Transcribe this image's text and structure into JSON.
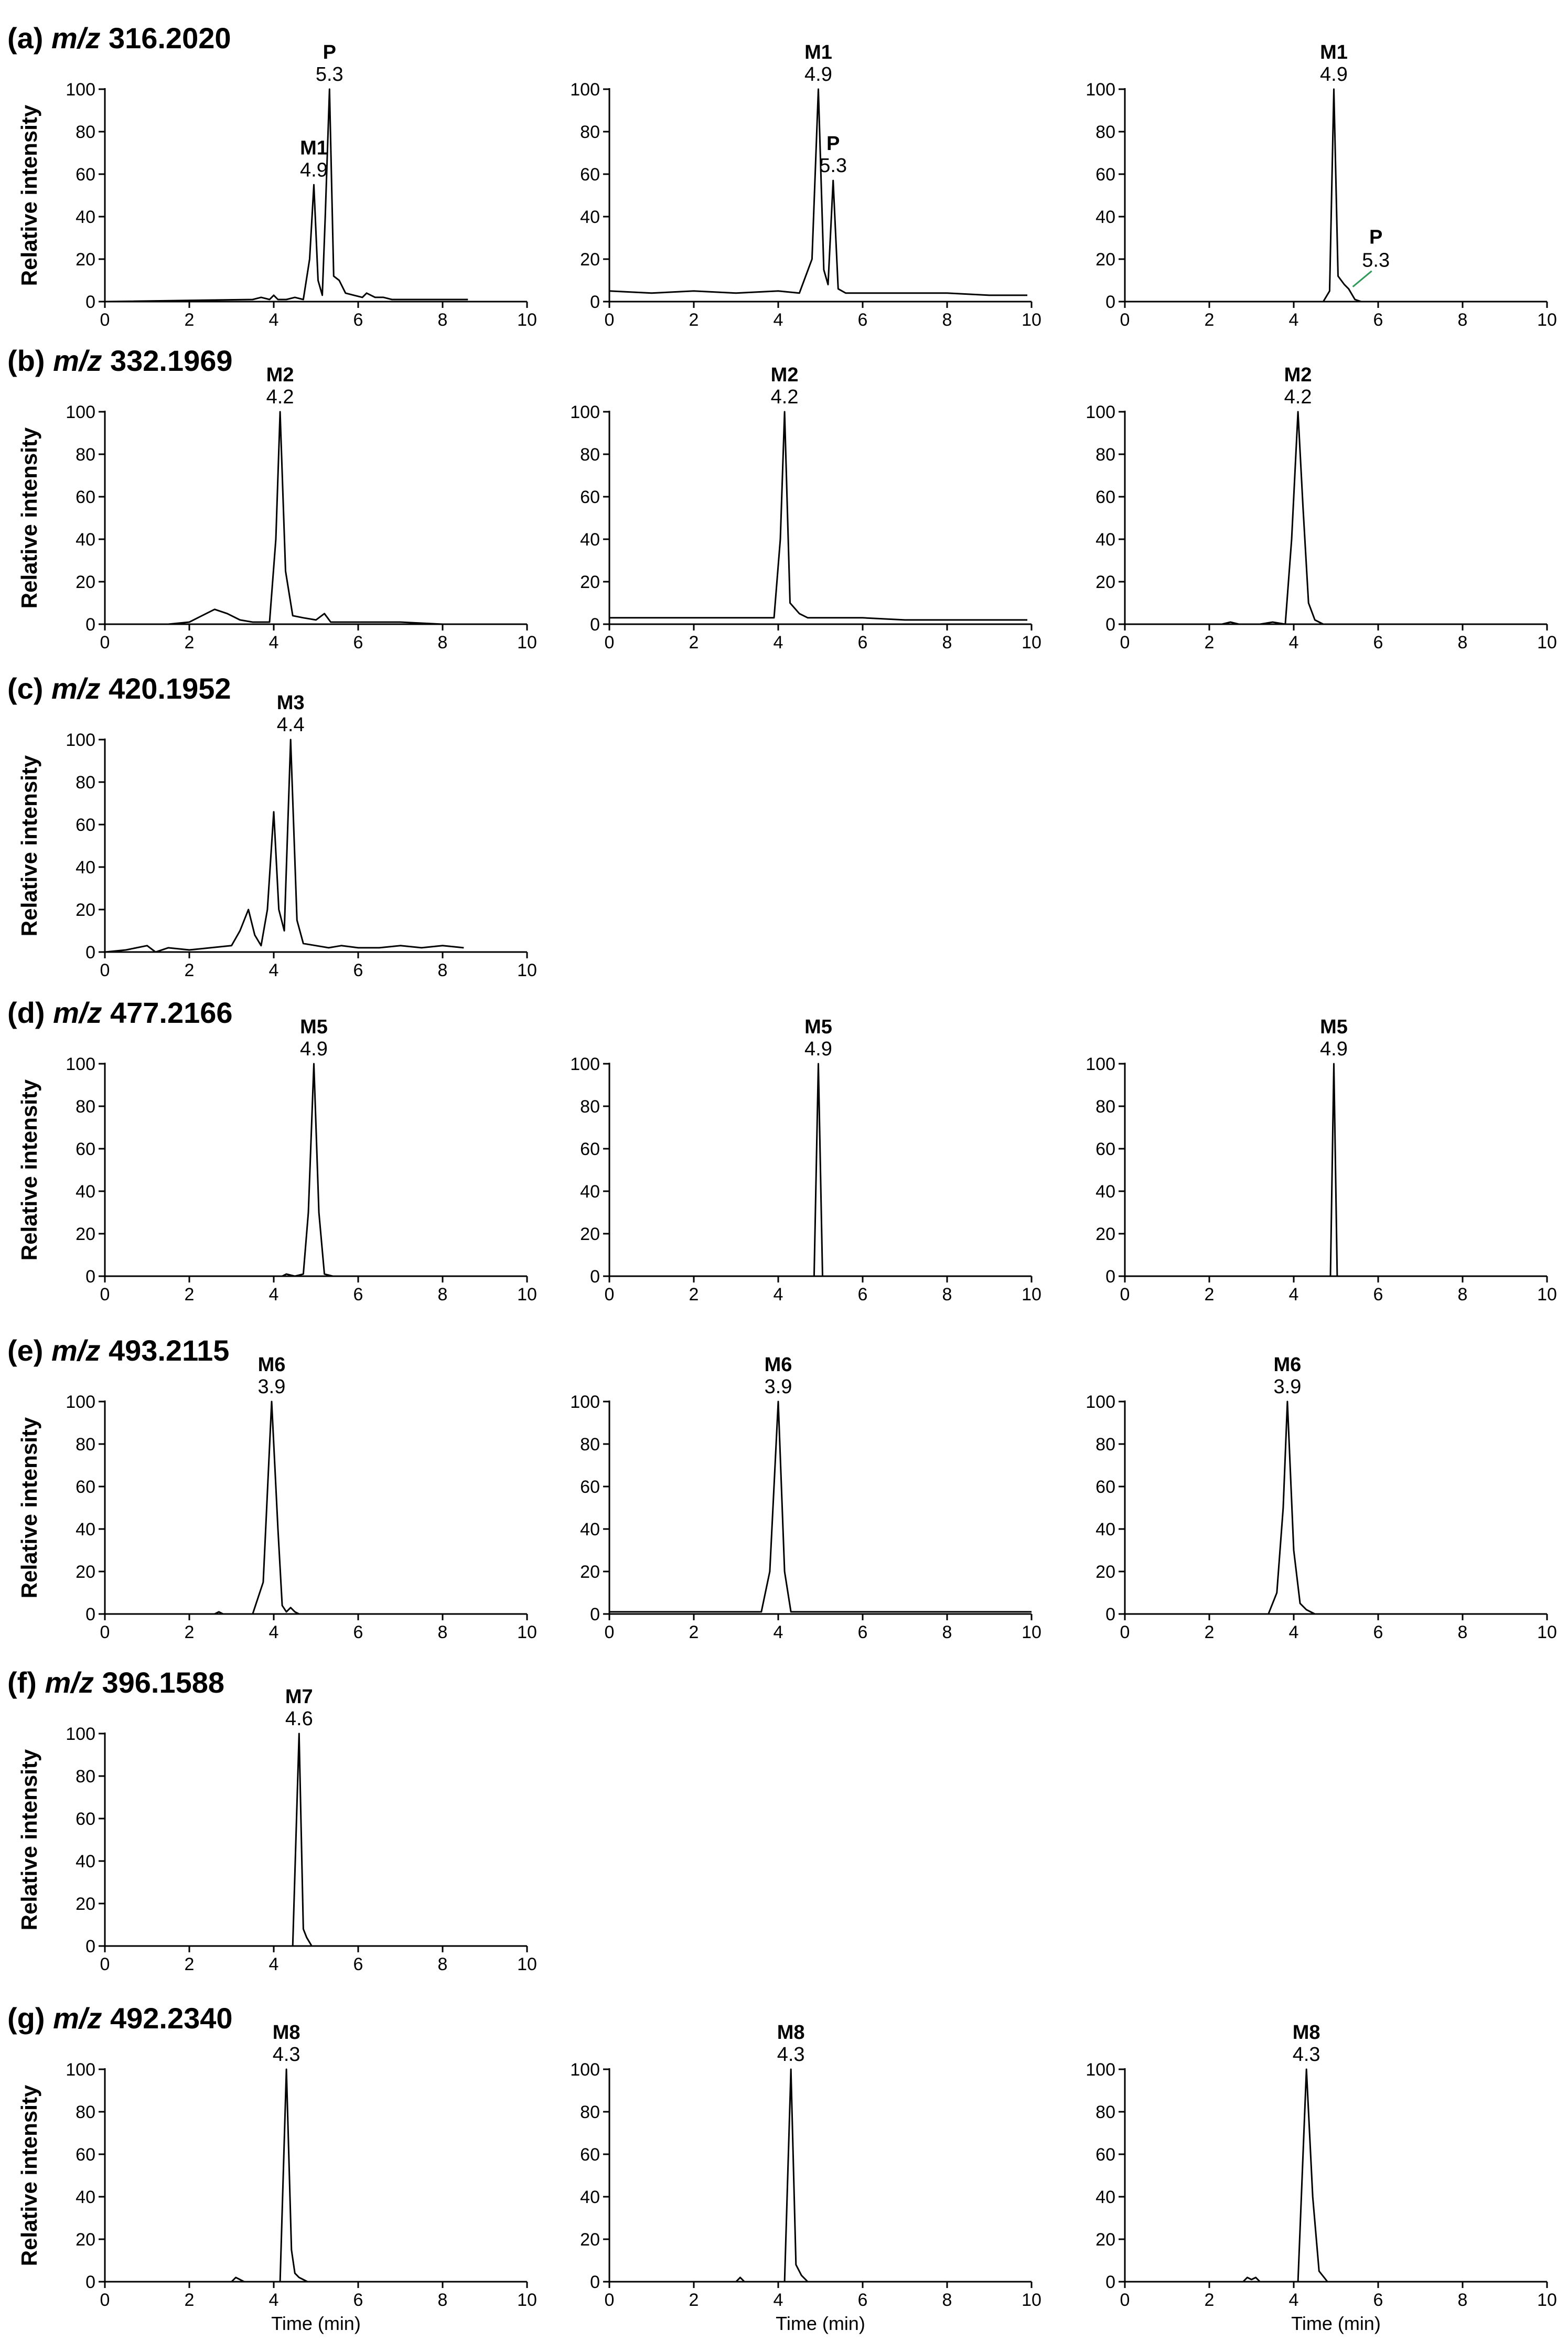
{
  "chart_data": [
    {
      "type": "line",
      "row": 0,
      "col": 0,
      "panel_letter": "(a)",
      "mz_prefix": "m/z",
      "mz_value": "316.2020",
      "ylabel": "Relative intensity",
      "xlabel": "",
      "xlim": [
        0,
        10
      ],
      "ylim": [
        0,
        100
      ],
      "x_ticks": [
        0,
        2,
        4,
        6,
        8,
        10
      ],
      "y_ticks": [
        0,
        20,
        40,
        60,
        80,
        100
      ],
      "peaks": [
        {
          "name": "M1",
          "rt": "4.9",
          "x": 4.95,
          "y": 55
        },
        {
          "name": "P",
          "rt": "5.3",
          "x": 5.32,
          "y": 100
        }
      ],
      "series": [
        {
          "x": [
            0,
            3.5,
            3.7,
            3.9,
            4.0,
            4.1,
            4.3,
            4.5,
            4.7,
            4.85,
            4.95,
            5.05,
            5.15,
            5.22,
            5.32,
            5.42,
            5.55,
            5.7,
            5.9,
            6.1,
            6.2,
            6.4,
            6.6,
            6.8,
            7.0,
            8.0,
            8.6
          ],
          "y": [
            0,
            1,
            2,
            1,
            3,
            1,
            1,
            2,
            1,
            20,
            55,
            10,
            3,
            40,
            100,
            12,
            10,
            4,
            3,
            2,
            4,
            2,
            2,
            1,
            1,
            1,
            1
          ]
        }
      ]
    },
    {
      "type": "line",
      "row": 0,
      "col": 1,
      "panel_letter": "",
      "mz_prefix": "",
      "mz_value": "",
      "ylabel": "",
      "xlabel": "",
      "xlim": [
        0,
        10
      ],
      "ylim": [
        0,
        100
      ],
      "x_ticks": [
        0,
        2,
        4,
        6,
        8,
        10
      ],
      "y_ticks": [
        0,
        20,
        40,
        60,
        80,
        100
      ],
      "peaks": [
        {
          "name": "M1",
          "rt": "4.9",
          "x": 4.95,
          "y": 100
        },
        {
          "name": "P",
          "rt": "5.3",
          "x": 5.3,
          "y": 57
        }
      ],
      "series": [
        {
          "x": [
            0,
            1,
            2,
            3,
            4,
            4.5,
            4.8,
            4.95,
            5.08,
            5.18,
            5.3,
            5.42,
            5.6,
            6,
            7,
            8,
            9,
            9.9
          ],
          "y": [
            5,
            4,
            5,
            4,
            5,
            4,
            20,
            100,
            15,
            8,
            57,
            6,
            4,
            4,
            4,
            4,
            3,
            3
          ]
        }
      ]
    },
    {
      "type": "line",
      "row": 0,
      "col": 2,
      "panel_letter": "",
      "mz_prefix": "",
      "mz_value": "",
      "ylabel": "",
      "xlabel": "",
      "xlim": [
        0,
        10
      ],
      "ylim": [
        0,
        100
      ],
      "x_ticks": [
        0,
        2,
        4,
        6,
        8,
        10
      ],
      "y_ticks": [
        0,
        20,
        40,
        60,
        80,
        100
      ],
      "peaks": [
        {
          "name": "M1",
          "rt": "4.9",
          "x": 4.95,
          "y": 100
        },
        {
          "name": "P",
          "rt": "5.3",
          "x": 5.35,
          "y": 6,
          "leader": true
        }
      ],
      "series": [
        {
          "x": [
            0,
            4.7,
            4.85,
            4.95,
            5.05,
            5.2,
            5.3,
            5.45,
            5.6,
            6,
            6.1
          ],
          "y": [
            0,
            0,
            5,
            100,
            12,
            8,
            6,
            1,
            0,
            0,
            0
          ]
        }
      ]
    },
    {
      "type": "line",
      "row": 1,
      "col": 0,
      "panel_letter": "(b)",
      "mz_prefix": "m/z",
      "mz_value": "332.1969",
      "ylabel": "Relative intensity",
      "xlabel": "",
      "xlim": [
        0,
        10
      ],
      "ylim": [
        0,
        100
      ],
      "x_ticks": [
        0,
        2,
        4,
        6,
        8,
        10
      ],
      "y_ticks": [
        0,
        20,
        40,
        60,
        80,
        100
      ],
      "peaks": [
        {
          "name": "M2",
          "rt": "4.2",
          "x": 4.15,
          "y": 100
        }
      ],
      "series": [
        {
          "x": [
            0,
            1.5,
            2,
            2.3,
            2.6,
            2.9,
            3.2,
            3.5,
            3.9,
            4.05,
            4.15,
            4.28,
            4.45,
            4.7,
            5.0,
            5.2,
            5.35,
            5.5,
            6,
            7,
            8,
            8.6
          ],
          "y": [
            0,
            0,
            1,
            4,
            7,
            5,
            2,
            1,
            1,
            40,
            100,
            25,
            4,
            3,
            2,
            5,
            1,
            1,
            1,
            1,
            0,
            0
          ]
        }
      ]
    },
    {
      "type": "line",
      "row": 1,
      "col": 1,
      "panel_letter": "",
      "mz_prefix": "",
      "mz_value": "",
      "ylabel": "",
      "xlabel": "",
      "xlim": [
        0,
        10
      ],
      "ylim": [
        0,
        100
      ],
      "x_ticks": [
        0,
        2,
        4,
        6,
        8,
        10
      ],
      "y_ticks": [
        0,
        20,
        40,
        60,
        80,
        100
      ],
      "peaks": [
        {
          "name": "M2",
          "rt": "4.2",
          "x": 4.15,
          "y": 100
        }
      ],
      "series": [
        {
          "x": [
            0,
            1,
            2,
            3,
            3.9,
            4.05,
            4.15,
            4.28,
            4.5,
            4.7,
            5,
            6,
            7,
            8,
            9,
            9.9
          ],
          "y": [
            3,
            3,
            3,
            3,
            3,
            40,
            100,
            10,
            5,
            3,
            3,
            3,
            2,
            2,
            2,
            2
          ]
        }
      ]
    },
    {
      "type": "line",
      "row": 1,
      "col": 2,
      "panel_letter": "",
      "mz_prefix": "",
      "mz_value": "",
      "ylabel": "",
      "xlabel": "",
      "xlim": [
        0,
        10
      ],
      "ylim": [
        0,
        100
      ],
      "x_ticks": [
        0,
        2,
        4,
        6,
        8,
        10
      ],
      "y_ticks": [
        0,
        20,
        40,
        60,
        80,
        100
      ],
      "peaks": [
        {
          "name": "M2",
          "rt": "4.2",
          "x": 4.1,
          "y": 100
        }
      ],
      "series": [
        {
          "x": [
            0,
            2.3,
            2.5,
            2.7,
            3.2,
            3.5,
            3.8,
            3.95,
            4.1,
            4.22,
            4.35,
            4.5,
            4.7,
            5,
            6
          ],
          "y": [
            0,
            0,
            1,
            0,
            0,
            1,
            0,
            40,
            100,
            55,
            10,
            2,
            0,
            0,
            0
          ]
        }
      ]
    },
    {
      "type": "line",
      "row": 2,
      "col": 0,
      "panel_letter": "(c)",
      "mz_prefix": "m/z",
      "mz_value": "420.1952",
      "ylabel": "Relative intensity",
      "xlabel": "",
      "xlim": [
        0,
        10
      ],
      "ylim": [
        0,
        100
      ],
      "x_ticks": [
        0,
        2,
        4,
        6,
        8,
        10
      ],
      "y_ticks": [
        0,
        20,
        40,
        60,
        80,
        100
      ],
      "peaks": [
        {
          "name": "M3",
          "rt": "4.4",
          "x": 4.4,
          "y": 100
        }
      ],
      "series": [
        {
          "x": [
            0,
            0.5,
            1,
            1.2,
            1.5,
            2,
            2.5,
            3,
            3.2,
            3.4,
            3.55,
            3.7,
            3.85,
            4.0,
            4.12,
            4.25,
            4.4,
            4.55,
            4.7,
            5,
            5.3,
            5.6,
            6,
            6.5,
            7,
            7.5,
            8,
            8.5
          ],
          "y": [
            0,
            1,
            3,
            0,
            2,
            1,
            2,
            3,
            10,
            20,
            8,
            3,
            20,
            66,
            20,
            10,
            100,
            15,
            4,
            3,
            2,
            3,
            2,
            2,
            3,
            2,
            3,
            2
          ]
        }
      ]
    },
    {
      "type": "line",
      "row": 3,
      "col": 0,
      "panel_letter": "(d)",
      "mz_prefix": "m/z",
      "mz_value": "477.2166",
      "ylabel": "Relative intensity",
      "xlabel": "",
      "xlim": [
        0,
        10
      ],
      "ylim": [
        0,
        100
      ],
      "x_ticks": [
        0,
        2,
        4,
        6,
        8,
        10
      ],
      "y_ticks": [
        0,
        20,
        40,
        60,
        80,
        100
      ],
      "peaks": [
        {
          "name": "M5",
          "rt": "4.9",
          "x": 4.95,
          "y": 100
        }
      ],
      "series": [
        {
          "x": [
            0,
            4.2,
            4.3,
            4.5,
            4.7,
            4.82,
            4.95,
            5.07,
            5.2,
            5.4,
            10
          ],
          "y": [
            0,
            0,
            1,
            0,
            1,
            30,
            100,
            30,
            1,
            0,
            0
          ]
        }
      ]
    },
    {
      "type": "line",
      "row": 3,
      "col": 1,
      "panel_letter": "",
      "mz_prefix": "",
      "mz_value": "",
      "ylabel": "",
      "xlabel": "",
      "xlim": [
        0,
        10
      ],
      "ylim": [
        0,
        100
      ],
      "x_ticks": [
        0,
        2,
        4,
        6,
        8,
        10
      ],
      "y_ticks": [
        0,
        20,
        40,
        60,
        80,
        100
      ],
      "peaks": [
        {
          "name": "M5",
          "rt": "4.9",
          "x": 4.95,
          "y": 100
        }
      ],
      "series": [
        {
          "x": [
            0,
            4.85,
            4.95,
            5.05,
            10
          ],
          "y": [
            0,
            0,
            100,
            0,
            0
          ]
        }
      ]
    },
    {
      "type": "line",
      "row": 3,
      "col": 2,
      "panel_letter": "",
      "mz_prefix": "",
      "mz_value": "",
      "ylabel": "",
      "xlabel": "",
      "xlim": [
        0,
        10
      ],
      "ylim": [
        0,
        100
      ],
      "x_ticks": [
        0,
        2,
        4,
        6,
        8,
        10
      ],
      "y_ticks": [
        0,
        20,
        40,
        60,
        80,
        100
      ],
      "peaks": [
        {
          "name": "M5",
          "rt": "4.9",
          "x": 4.95,
          "y": 100
        }
      ],
      "series": [
        {
          "x": [
            0,
            4.87,
            4.95,
            5.03,
            10
          ],
          "y": [
            0,
            0,
            100,
            0,
            0
          ]
        }
      ]
    },
    {
      "type": "line",
      "row": 4,
      "col": 0,
      "panel_letter": "(e)",
      "mz_prefix": "m/z",
      "mz_value": "493.2115",
      "ylabel": "Relative intensity",
      "xlabel": "",
      "xlim": [
        0,
        10
      ],
      "ylim": [
        0,
        100
      ],
      "x_ticks": [
        0,
        2,
        4,
        6,
        8,
        10
      ],
      "y_ticks": [
        0,
        20,
        40,
        60,
        80,
        100
      ],
      "peaks": [
        {
          "name": "M6",
          "rt": "3.9",
          "x": 3.95,
          "y": 100
        }
      ],
      "series": [
        {
          "x": [
            0,
            2.6,
            2.7,
            2.8,
            3.5,
            3.75,
            3.95,
            4.1,
            4.2,
            4.3,
            4.4,
            4.5,
            4.6,
            10
          ],
          "y": [
            0,
            0,
            1,
            0,
            0,
            15,
            100,
            40,
            4,
            1,
            3,
            1,
            0,
            0
          ]
        }
      ]
    },
    {
      "type": "line",
      "row": 4,
      "col": 1,
      "panel_letter": "",
      "mz_prefix": "",
      "mz_value": "",
      "ylabel": "",
      "xlabel": "",
      "xlim": [
        0,
        10
      ],
      "ylim": [
        0,
        100
      ],
      "x_ticks": [
        0,
        2,
        4,
        6,
        8,
        10
      ],
      "y_ticks": [
        0,
        20,
        40,
        60,
        80,
        100
      ],
      "peaks": [
        {
          "name": "M6",
          "rt": "3.9",
          "x": 4.0,
          "y": 100
        }
      ],
      "series": [
        {
          "x": [
            0,
            3.6,
            3.8,
            4.0,
            4.15,
            4.3,
            10
          ],
          "y": [
            1,
            1,
            20,
            100,
            20,
            1,
            1
          ]
        }
      ]
    },
    {
      "type": "line",
      "row": 4,
      "col": 2,
      "panel_letter": "",
      "mz_prefix": "",
      "mz_value": "",
      "ylabel": "",
      "xlabel": "",
      "xlim": [
        0,
        10
      ],
      "ylim": [
        0,
        100
      ],
      "x_ticks": [
        0,
        2,
        4,
        6,
        8,
        10
      ],
      "y_ticks": [
        0,
        20,
        40,
        60,
        80,
        100
      ],
      "peaks": [
        {
          "name": "M6",
          "rt": "3.9",
          "x": 3.85,
          "y": 100
        }
      ],
      "series": [
        {
          "x": [
            0,
            3.4,
            3.6,
            3.75,
            3.85,
            4.0,
            4.15,
            4.3,
            4.5,
            10
          ],
          "y": [
            0,
            0,
            10,
            50,
            100,
            30,
            5,
            2,
            0,
            0
          ]
        }
      ]
    },
    {
      "type": "line",
      "row": 5,
      "col": 0,
      "panel_letter": "(f)",
      "mz_prefix": "m/z",
      "mz_value": "396.1588",
      "ylabel": "Relative intensity",
      "xlabel": "",
      "xlim": [
        0,
        10
      ],
      "ylim": [
        0,
        100
      ],
      "x_ticks": [
        0,
        2,
        4,
        6,
        8,
        10
      ],
      "y_ticks": [
        0,
        20,
        40,
        60,
        80,
        100
      ],
      "peaks": [
        {
          "name": "M7",
          "rt": "4.6",
          "x": 4.6,
          "y": 100
        }
      ],
      "series": [
        {
          "x": [
            0,
            4.45,
            4.6,
            4.7,
            4.78,
            4.9,
            10
          ],
          "y": [
            0,
            0,
            100,
            8,
            4,
            0,
            0
          ]
        }
      ]
    },
    {
      "type": "line",
      "row": 6,
      "col": 0,
      "panel_letter": "(g)",
      "mz_prefix": "m/z",
      "mz_value": "492.2340",
      "ylabel": "Relative intensity",
      "xlabel": "Time (min)",
      "xlim": [
        0,
        10
      ],
      "ylim": [
        0,
        100
      ],
      "x_ticks": [
        0,
        2,
        4,
        6,
        8,
        10
      ],
      "y_ticks": [
        0,
        20,
        40,
        60,
        80,
        100
      ],
      "peaks": [
        {
          "name": "M8",
          "rt": "4.3",
          "x": 4.3,
          "y": 100
        }
      ],
      "series": [
        {
          "x": [
            0,
            3.0,
            3.1,
            3.2,
            3.3,
            4.15,
            4.3,
            4.42,
            4.5,
            4.6,
            4.8,
            10
          ],
          "y": [
            0,
            0,
            2,
            1,
            0,
            0,
            100,
            15,
            4,
            2,
            0,
            0
          ]
        }
      ]
    },
    {
      "type": "line",
      "row": 6,
      "col": 1,
      "panel_letter": "",
      "mz_prefix": "",
      "mz_value": "",
      "ylabel": "",
      "xlabel": "Time (min)",
      "xlim": [
        0,
        10
      ],
      "ylim": [
        0,
        100
      ],
      "x_ticks": [
        0,
        2,
        4,
        6,
        8,
        10
      ],
      "y_ticks": [
        0,
        20,
        40,
        60,
        80,
        100
      ],
      "peaks": [
        {
          "name": "M8",
          "rt": "4.3",
          "x": 4.3,
          "y": 100
        }
      ],
      "series": [
        {
          "x": [
            0,
            3.0,
            3.1,
            3.2,
            4.15,
            4.3,
            4.42,
            4.55,
            4.7,
            10
          ],
          "y": [
            0,
            0,
            2,
            0,
            0,
            100,
            8,
            3,
            0,
            0
          ]
        }
      ]
    },
    {
      "type": "line",
      "row": 6,
      "col": 2,
      "panel_letter": "",
      "mz_prefix": "",
      "mz_value": "",
      "ylabel": "",
      "xlabel": "Time (min)",
      "xlim": [
        0,
        10
      ],
      "ylim": [
        0,
        100
      ],
      "x_ticks": [
        0,
        2,
        4,
        6,
        8,
        10
      ],
      "y_ticks": [
        0,
        20,
        40,
        60,
        80,
        100
      ],
      "peaks": [
        {
          "name": "M8",
          "rt": "4.3",
          "x": 4.3,
          "y": 100
        }
      ],
      "series": [
        {
          "x": [
            0,
            2.8,
            2.9,
            3.0,
            3.1,
            3.2,
            4.1,
            4.3,
            4.45,
            4.6,
            4.8,
            10
          ],
          "y": [
            0,
            0,
            2,
            1,
            2,
            0,
            0,
            100,
            40,
            5,
            0,
            0
          ]
        }
      ]
    }
  ]
}
